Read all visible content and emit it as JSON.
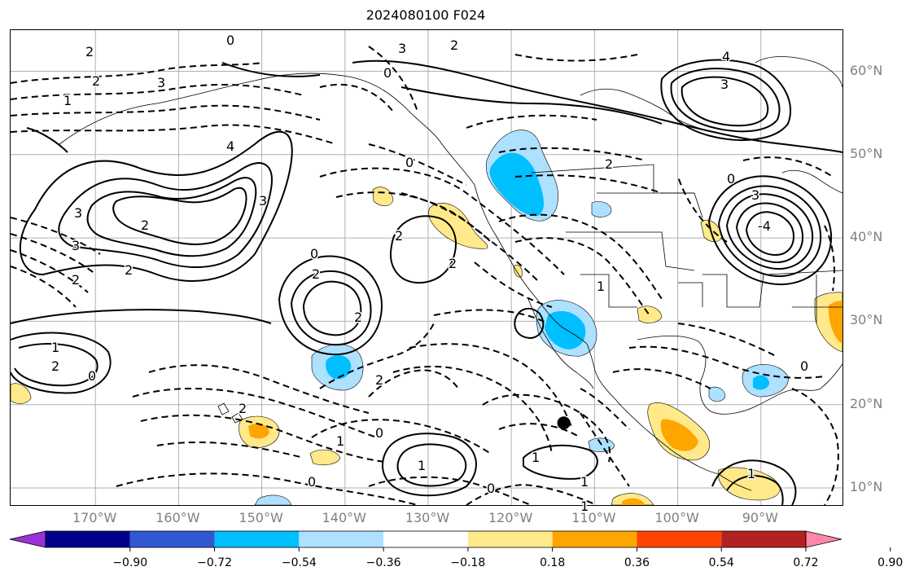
{
  "title": "2024080100 F024",
  "lat_labels": [
    {
      "label": "60°N",
      "lat": 60
    },
    {
      "label": "50°N",
      "lat": 50
    },
    {
      "label": "40°N",
      "lat": 40
    },
    {
      "label": "30°N",
      "lat": 30
    },
    {
      "label": "20°N",
      "lat": 20
    },
    {
      "label": "10°N",
      "lat": 10
    }
  ],
  "lon_labels": [
    {
      "label": "170°W",
      "lon": -170
    },
    {
      "label": "160°W",
      "lon": -160
    },
    {
      "label": "150°W",
      "lon": -150
    },
    {
      "label": "140°W",
      "lon": -140
    },
    {
      "label": "130°W",
      "lon": -130
    },
    {
      "label": "120°W",
      "lon": -120
    },
    {
      "label": "110°W",
      "lon": -110
    },
    {
      "label": "100°W",
      "lon": -100
    },
    {
      "label": "90°W",
      "lon": -90
    }
  ],
  "colorbar": {
    "ticks": [
      "−0.90",
      "−0.72",
      "−0.54",
      "−0.36",
      "−0.18",
      "0.18",
      "0.36",
      "0.54",
      "0.72",
      "0.90"
    ],
    "colors": [
      "#9b30d8",
      "#00008b",
      "#3158d0",
      "#00bfff",
      "#aee0ff",
      "#ffffff",
      "#ffe98a",
      "#ffa500",
      "#ff4500",
      "#b22222",
      "#ff88aa"
    ]
  },
  "contour_labels": [
    "2",
    "2",
    "3",
    "1",
    "0",
    "4",
    "3",
    "2",
    "2",
    "1",
    "2",
    "2",
    "0",
    "2",
    "3",
    "3",
    "2",
    "0",
    "0",
    "3",
    "2",
    "0",
    "4",
    "3",
    "-4",
    "3",
    "2",
    "0",
    "1",
    "2",
    "2",
    "0",
    "1",
    "1",
    "0",
    "0",
    "1",
    "0",
    "1",
    "1",
    "1",
    "2",
    "2"
  ],
  "marker": {
    "lon": -113.7,
    "lat": 17.8
  }
}
